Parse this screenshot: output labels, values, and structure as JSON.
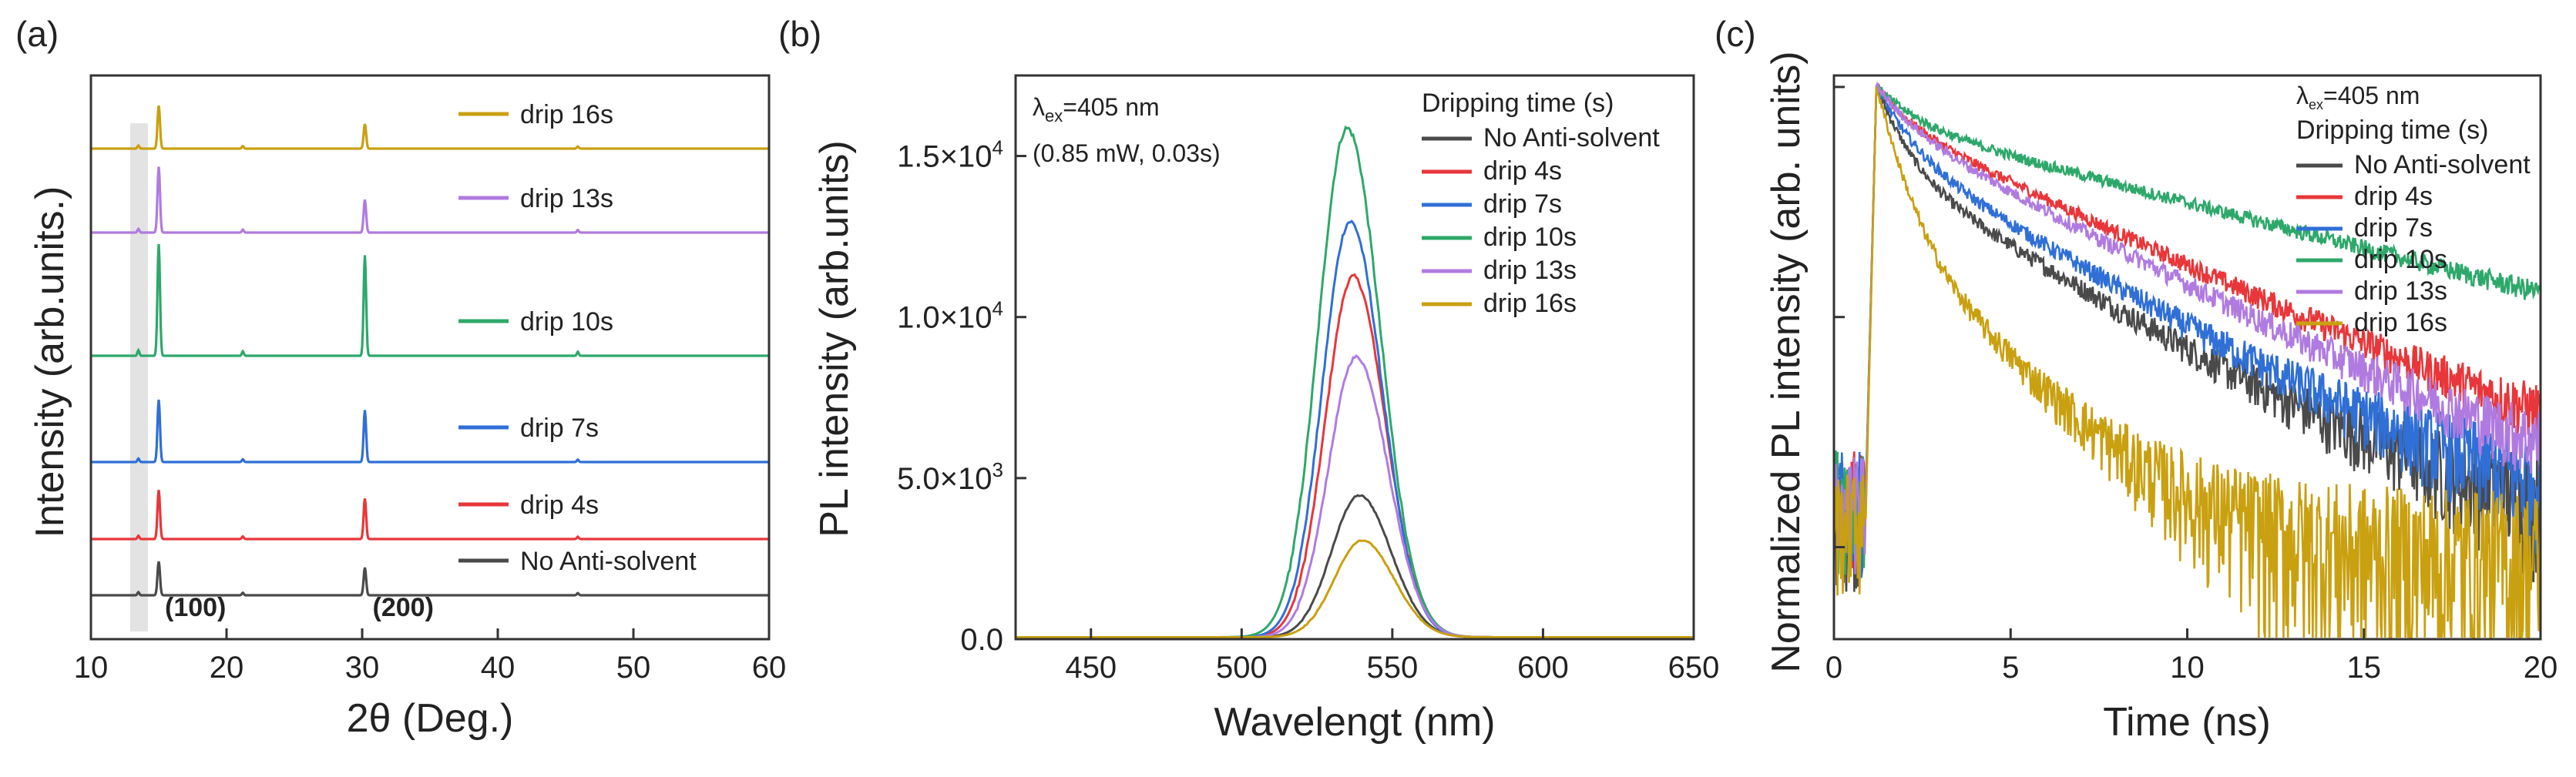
{
  "chart_data": [
    {
      "panel": "(a)",
      "type": "line",
      "subtype": "stacked XRD patterns",
      "xlabel": "2θ (Deg.)",
      "ylabel": "Intensity (arb.units.)",
      "xlim": [
        10,
        60
      ],
      "xticks": [
        10,
        20,
        30,
        40,
        50,
        60
      ],
      "yticks_shown": false,
      "shaded_band": [
        12.9,
        14.2
      ],
      "peak_labels": [
        {
          "text": "(100)",
          "x": 15.0
        },
        {
          "text": "(200)",
          "x": 30.2
        }
      ],
      "peaks_2theta": [
        15.0,
        30.2
      ],
      "series": [
        {
          "name": "No Anti-solvent",
          "color": "#4a4a4a",
          "peak_100": 0.55,
          "peak_200": 0.45
        },
        {
          "name": "drip 4s",
          "color": "#e8363a",
          "peak_100": 0.75,
          "peak_200": 0.62
        },
        {
          "name": "drip 7s",
          "color": "#2f6fd6",
          "peak_100": 0.9,
          "peak_200": 0.75
        },
        {
          "name": "drip 10s",
          "color": "#2ea86a",
          "peak_100": 1.0,
          "peak_200": 0.9
        },
        {
          "name": "drip 13s",
          "color": "#b07be0",
          "peak_100": 0.9,
          "peak_200": 0.45
        },
        {
          "name": "drip 16s",
          "color": "#c9a010",
          "peak_100": 0.7,
          "peak_200": 0.4
        }
      ]
    },
    {
      "panel": "(b)",
      "type": "line",
      "subtype": "PL spectra",
      "xlabel": "Wavelengt (nm)",
      "ylabel": "PL intensity (arb.units)",
      "xlim": [
        425,
        650
      ],
      "ylim": [
        0,
        17500
      ],
      "xticks": [
        450,
        500,
        550,
        600,
        650
      ],
      "ytick_values": [
        0,
        5000,
        10000,
        15000
      ],
      "ytick_labels": [
        {
          "mantissa": "0.0",
          "exponent": ""
        },
        {
          "mantissa": "5.0",
          "exponent": "3"
        },
        {
          "mantissa": "1.0",
          "exponent": "4"
        },
        {
          "mantissa": "1.5",
          "exponent": "4"
        }
      ],
      "annotation": {
        "symbol": "λ",
        "sub": "ex",
        "value": "=405 nm",
        "line2": "(0.85 mW, 0.03s)"
      },
      "legend_title": "Dripping time (s)",
      "series": [
        {
          "name": "No Anti-solvent",
          "color": "#4a4a4a",
          "peak_nm": 539,
          "peak": 4400,
          "width": 13
        },
        {
          "name": "drip 4s",
          "color": "#e8363a",
          "peak_nm": 537,
          "peak": 11200,
          "width": 13
        },
        {
          "name": "drip 7s",
          "color": "#2f6fd6",
          "peak_nm": 536,
          "peak": 12900,
          "width": 13
        },
        {
          "name": "drip 10s",
          "color": "#2ea86a",
          "peak_nm": 535,
          "peak": 15800,
          "width": 13.5
        },
        {
          "name": "drip 13s",
          "color": "#b07be0",
          "peak_nm": 538,
          "peak": 8700,
          "width": 13
        },
        {
          "name": "drip 16s",
          "color": "#c9a010",
          "peak_nm": 540,
          "peak": 3000,
          "width": 13
        }
      ]
    },
    {
      "panel": "(c)",
      "type": "line",
      "subtype": "TRPL decay (log scale)",
      "xlabel": "Time (ns)",
      "ylabel": "Normalized PL intensity (arb. units)",
      "xlim": [
        0,
        20
      ],
      "xticks": [
        0,
        5,
        10,
        15,
        20
      ],
      "yscale": "log",
      "ylim_decades": [
        -2.4,
        0.05
      ],
      "annotation": {
        "symbol": "λ",
        "sub": "ex",
        "value": "=405 nm"
      },
      "legend_title": "Dripping time (s)",
      "series": [
        {
          "name": "No Anti-solvent",
          "color": "#4a4a4a",
          "a1": 0.55,
          "tau1": 0.7,
          "a2": 0.45,
          "tau2": 4.5,
          "noise_floor": 0.0105
        },
        {
          "name": "drip 4s",
          "color": "#e8363a",
          "a1": 0.28,
          "tau1": 0.8,
          "a2": 0.72,
          "tau2": 5.8,
          "noise_floor": 0.012
        },
        {
          "name": "drip 7s",
          "color": "#2f6fd6",
          "a1": 0.45,
          "tau1": 0.8,
          "a2": 0.55,
          "tau2": 4.6,
          "noise_floor": 0.0118
        },
        {
          "name": "drip 10s",
          "color": "#2ea86a",
          "a1": 0.3,
          "tau1": 1.0,
          "a2": 0.7,
          "tau2": 10.5,
          "noise_floor": 0.0125
        },
        {
          "name": "drip 13s",
          "color": "#b07be0",
          "a1": 0.3,
          "tau1": 0.9,
          "a2": 0.7,
          "tau2": 5.2,
          "noise_floor": 0.0113
        },
        {
          "name": "drip 16s",
          "color": "#c9a010",
          "a1": 0.75,
          "tau1": 0.6,
          "a2": 0.25,
          "tau2": 2.6,
          "noise_floor": 0.0095
        }
      ]
    }
  ]
}
